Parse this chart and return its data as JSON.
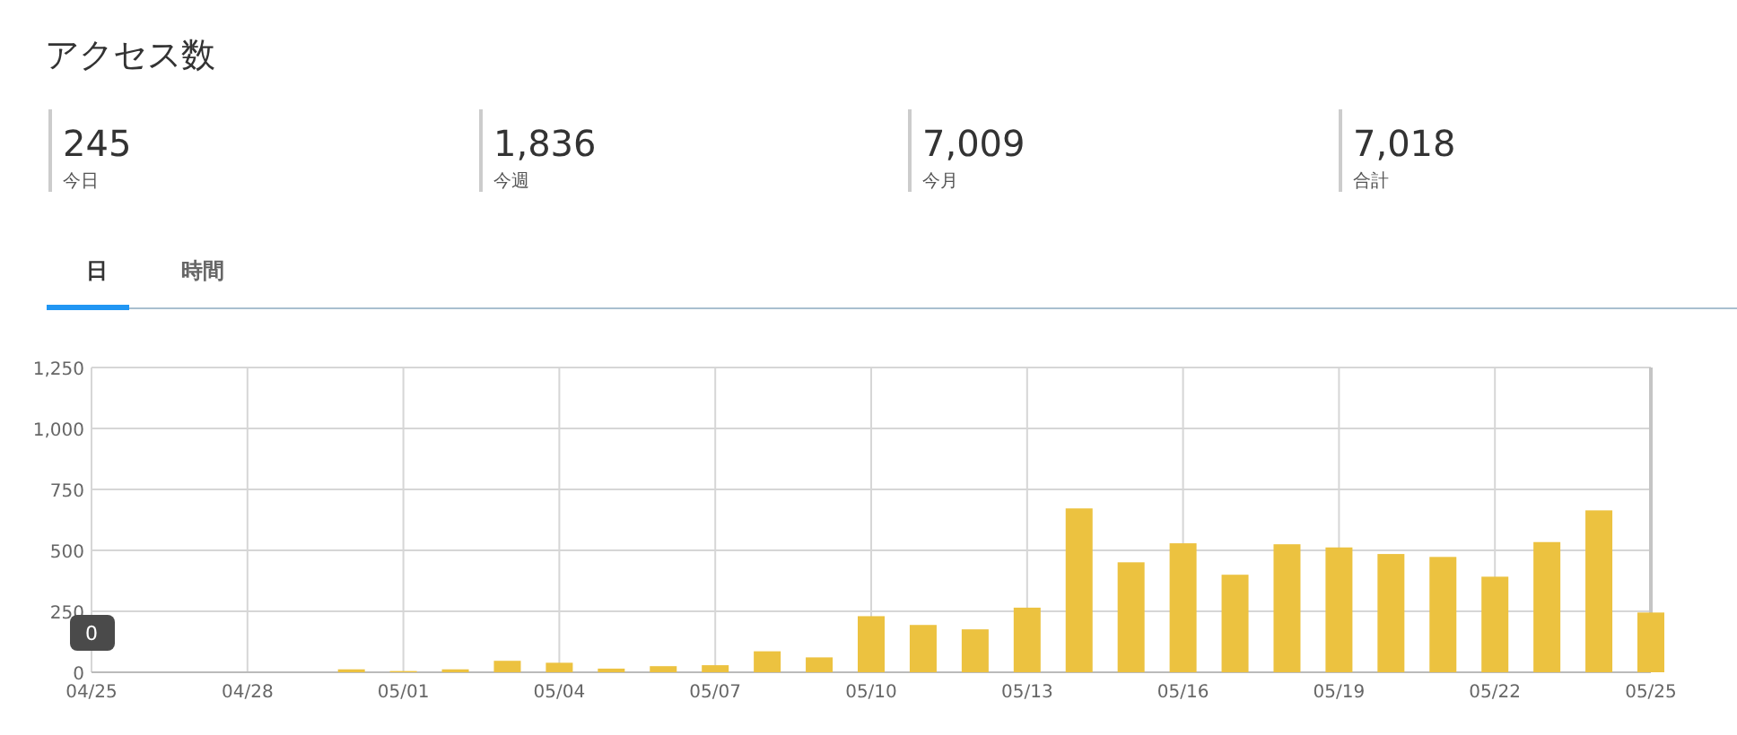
{
  "chart_data": [
    {
      "type": "other",
      "title": "アクセス数",
      "categories": [
        "今日",
        "今週",
        "今月",
        "合計"
      ],
      "value_labels": [
        "245",
        "1,836",
        "7,009",
        "7,018"
      ],
      "annotations": [
        "日",
        "時間"
      ]
    },
    {
      "type": "bar",
      "color": "#ecc240",
      "grid": true,
      "x": [
        "--04-25",
        "--04-26",
        "--04-27",
        "--04-28",
        "--04-29",
        "--04-30",
        "--05-01",
        "--05-02",
        "--05-03",
        "--05-04",
        "--05-05",
        "--05-06",
        "--05-07",
        "--05-08",
        "--05-09",
        "--05-10",
        "--05-11",
        "--05-12",
        "--05-13",
        "--05-14",
        "--05-15",
        "--05-16",
        "--05-17",
        "--05-18",
        "--05-19",
        "--05-20",
        "--05-21",
        "--05-22",
        "--05-23",
        "--05-24",
        "--05-25"
      ],
      "values": [
        0,
        0,
        0,
        0,
        0,
        12,
        5,
        12,
        47,
        39,
        15,
        25,
        29,
        86,
        61,
        230,
        194,
        176,
        265,
        672,
        451,
        529,
        400,
        525,
        512,
        485,
        473,
        392,
        534,
        664,
        245
      ],
      "xlim": [
        "--04-25",
        "--05-25"
      ],
      "xticks": [
        {
          "value": "--04-25",
          "label": "04/25"
        },
        {
          "value": "--04-28",
          "label": "04/28"
        },
        {
          "value": "--05-01",
          "label": "05/01"
        },
        {
          "value": "--05-04",
          "label": "05/04"
        },
        {
          "value": "--05-07",
          "label": "05/07"
        },
        {
          "value": "--05-10",
          "label": "05/10"
        },
        {
          "value": "--05-13",
          "label": "05/13"
        },
        {
          "value": "--05-16",
          "label": "05/16"
        },
        {
          "value": "--05-19",
          "label": "05/19"
        },
        {
          "value": "--05-22",
          "label": "05/22"
        },
        {
          "value": "--05-25",
          "label": "05/25"
        }
      ],
      "ylim": [
        0,
        1250
      ],
      "yticks": [
        0,
        250,
        500,
        750,
        {
          "value": 1000,
          "label": "1,000"
        },
        {
          "value": 1250,
          "label": "1,250"
        }
      ],
      "annotations": [
        {
          "text": "0",
          "x": "--04-25",
          "y": 0
        }
      ]
    }
  ]
}
